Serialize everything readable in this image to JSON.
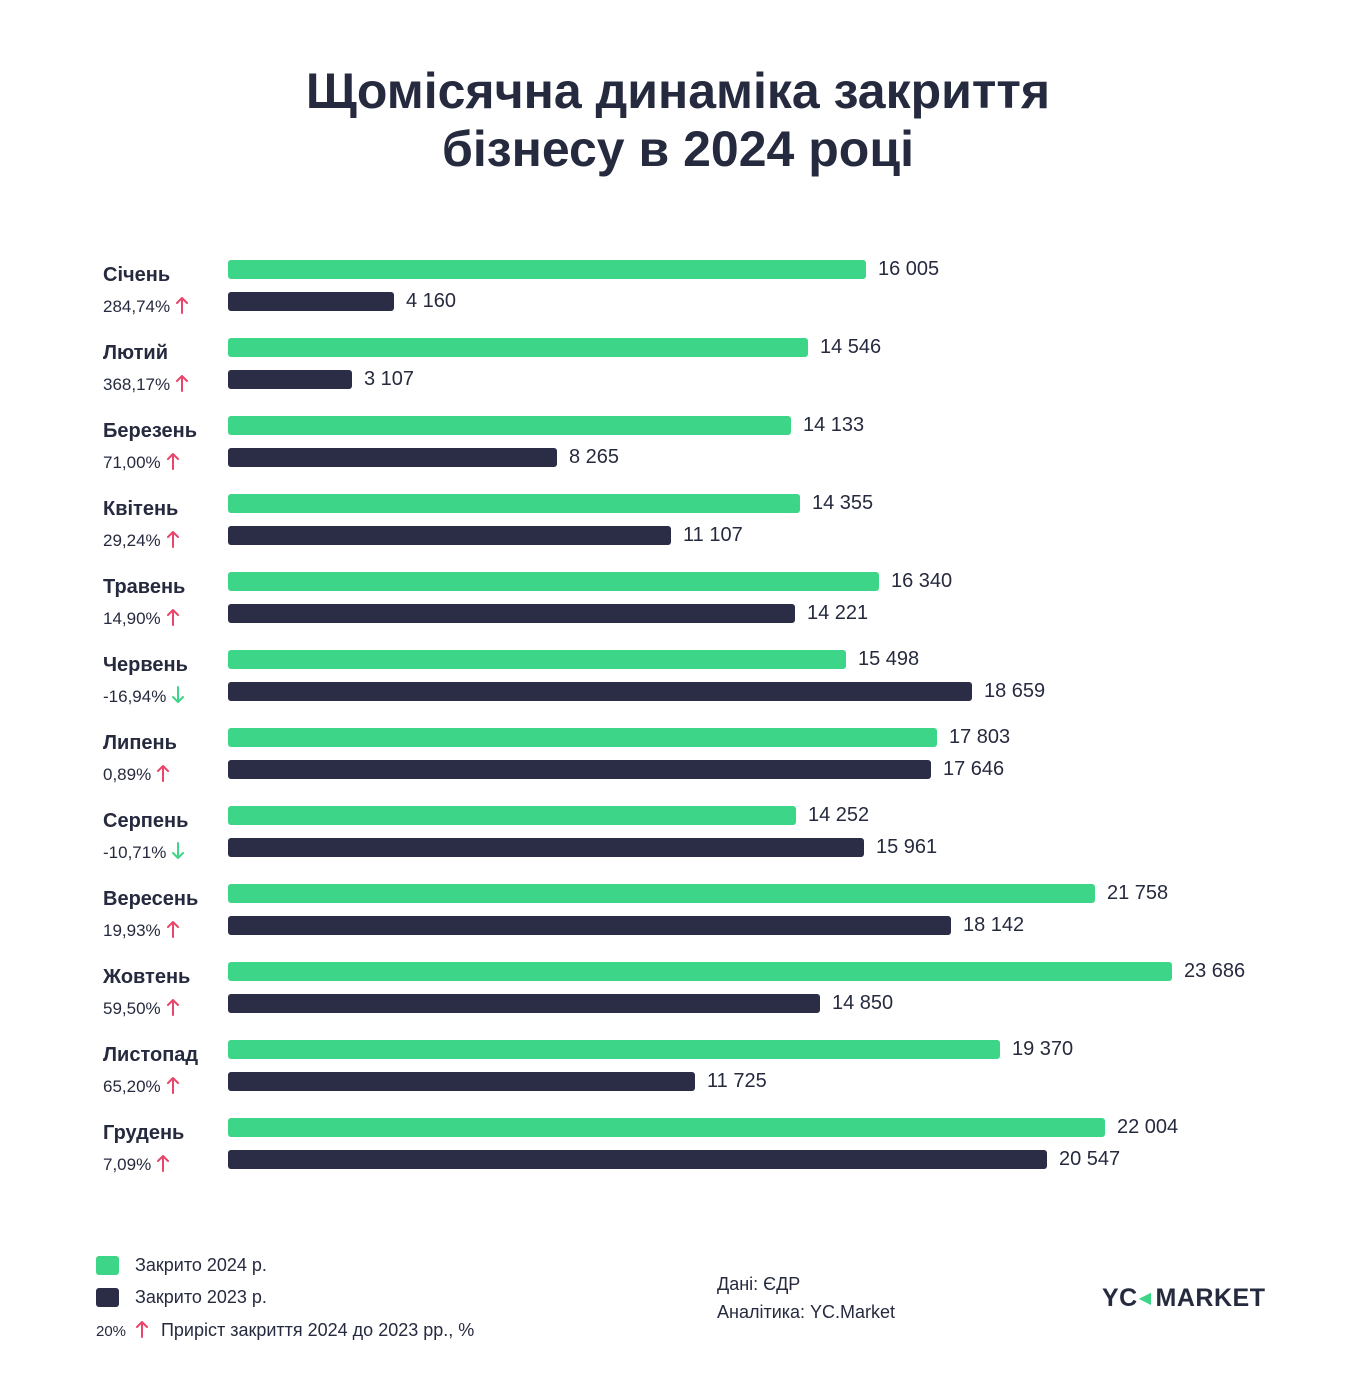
{
  "title_lines": [
    "Щомісячна динаміка закриття",
    "бізнесу в 2024 році"
  ],
  "colors": {
    "series_2024": "#3dd587",
    "series_2023": "#2a2d45",
    "up_arrow": "#e8456b",
    "down_arrow": "#3dd587"
  },
  "chart_data": {
    "type": "bar",
    "orientation": "horizontal",
    "title": "Щомісячна динаміка закриття бізнесу в 2024 році",
    "categories": [
      "Січень",
      "Лютий",
      "Березень",
      "Квітень",
      "Травень",
      "Червень",
      "Липень",
      "Серпень",
      "Вересень",
      "Жовтень",
      "Листопад",
      "Грудень"
    ],
    "series": [
      {
        "name": "Закрито 2024 р.",
        "values": [
          16005,
          14546,
          14133,
          14355,
          16340,
          15498,
          17803,
          14252,
          21758,
          23686,
          19370,
          22004
        ],
        "labels": [
          "16 005",
          "14 546",
          "14 133",
          "14 355",
          "16 340",
          "15 498",
          "17 803",
          "14 252",
          "21 758",
          "23 686",
          "19 370",
          "22 004"
        ]
      },
      {
        "name": "Закрито 2023 р.",
        "values": [
          4160,
          3107,
          8265,
          11107,
          14221,
          18659,
          17646,
          15961,
          18142,
          14850,
          11725,
          20547
        ],
        "labels": [
          "4 160",
          "3 107",
          "8 265",
          "11 107",
          "14 221",
          "18 659",
          "17 646",
          "15 961",
          "18 142",
          "14 850",
          "11 725",
          "20 547"
        ]
      }
    ],
    "growth": {
      "labels": [
        "284,74%",
        "368,17%",
        "71,00%",
        "29,24%",
        "14,90%",
        "-16,94%",
        "0,89%",
        "-10,71%",
        "19,93%",
        "59,50%",
        "65,20%",
        "7,09%"
      ],
      "direction": [
        "up",
        "up",
        "up",
        "up",
        "up",
        "down",
        "up",
        "down",
        "up",
        "up",
        "up",
        "up"
      ]
    },
    "legend": "bottom-left"
  },
  "legend": {
    "item_2024": "Закрито 2024 р.",
    "item_2023": "Закрито 2023 р.",
    "growth_example": "20%",
    "growth_text": "Приріст закриття 2024 до 2023 рр., %"
  },
  "source": {
    "data": "Дані: ЄДР",
    "analytics": "Аналітика: YC.Market"
  },
  "logo": {
    "left": "YC",
    "right": "MARKET"
  }
}
